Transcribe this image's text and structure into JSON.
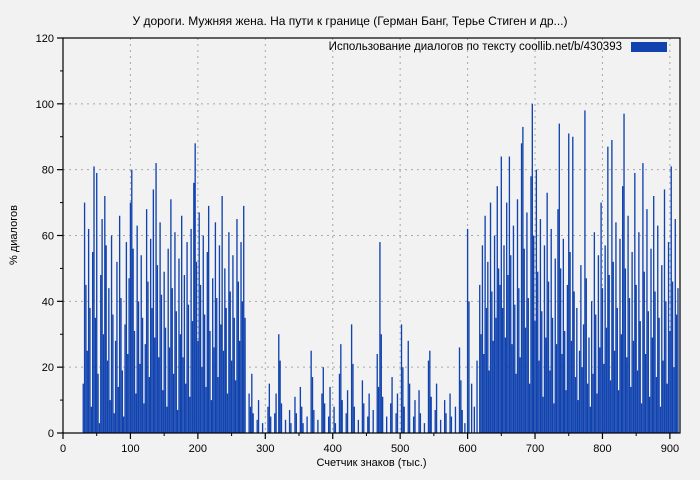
{
  "title": "У дороги. Мужняя жена. На пути к границе (Герман Банг, Терье Стиген и др...)",
  "legend": {
    "label": "Использование диалогов по тексту  coollib.net/b/430393",
    "swatch_color": "#1143af"
  },
  "colors": {
    "background": "#f2f2f2",
    "bar": "#1143af",
    "grid": "#a8a8a8",
    "border": "#000000",
    "text": "#000000"
  },
  "chart_data": {
    "type": "bar",
    "style": "impulses",
    "title": "У дороги. Мужняя жена. На пути к границе (Герман Банг, Терье Стиген и др...)",
    "xlabel": "Счетчик знаков (тыс.)",
    "ylabel": "% диалогов",
    "xlim": [
      0,
      915
    ],
    "ylim": [
      0,
      120
    ],
    "x_ticks": [
      0,
      100,
      200,
      300,
      400,
      500,
      600,
      700,
      800,
      900
    ],
    "x_minor_ticks": [
      50,
      150,
      250,
      350,
      450,
      550,
      650,
      750,
      850
    ],
    "y_ticks": [
      0,
      20,
      40,
      60,
      80,
      100,
      120
    ],
    "y_minor_ticks": [
      10,
      30,
      50,
      70,
      90,
      110
    ],
    "grid": true,
    "legend_position": "top-right",
    "bar_color": "#1143af",
    "points": [
      [
        30,
        15
      ],
      [
        32,
        70
      ],
      [
        34,
        45
      ],
      [
        36,
        25
      ],
      [
        38,
        62
      ],
      [
        40,
        38
      ],
      [
        42,
        8
      ],
      [
        44,
        55
      ],
      [
        46,
        81
      ],
      [
        48,
        35
      ],
      [
        50,
        79
      ],
      [
        52,
        18
      ],
      [
        54,
        3
      ],
      [
        56,
        48
      ],
      [
        58,
        65
      ],
      [
        60,
        30
      ],
      [
        62,
        72
      ],
      [
        64,
        57
      ],
      [
        66,
        22
      ],
      [
        68,
        44
      ],
      [
        70,
        10
      ],
      [
        72,
        60
      ],
      [
        74,
        36
      ],
      [
        76,
        6
      ],
      [
        78,
        28
      ],
      [
        80,
        52
      ],
      [
        82,
        14
      ],
      [
        84,
        66
      ],
      [
        86,
        41
      ],
      [
        88,
        19
      ],
      [
        90,
        5
      ],
      [
        92,
        33
      ],
      [
        94,
        58
      ],
      [
        96,
        24
      ],
      [
        98,
        47
      ],
      [
        100,
        70
      ],
      [
        102,
        80
      ],
      [
        104,
        56
      ],
      [
        106,
        31
      ],
      [
        108,
        12
      ],
      [
        110,
        63
      ],
      [
        112,
        40
      ],
      [
        114,
        21
      ],
      [
        116,
        54
      ],
      [
        118,
        35
      ],
      [
        120,
        9
      ],
      [
        122,
        27
      ],
      [
        124,
        68
      ],
      [
        126,
        46
      ],
      [
        128,
        17
      ],
      [
        130,
        59
      ],
      [
        132,
        38
      ],
      [
        134,
        74
      ],
      [
        136,
        29
      ],
      [
        138,
        82
      ],
      [
        140,
        51
      ],
      [
        142,
        23
      ],
      [
        144,
        64
      ],
      [
        146,
        42
      ],
      [
        148,
        13
      ],
      [
        150,
        49
      ],
      [
        152,
        32
      ],
      [
        154,
        8
      ],
      [
        156,
        56
      ],
      [
        158,
        26
      ],
      [
        160,
        71
      ],
      [
        162,
        44
      ],
      [
        164,
        18
      ],
      [
        166,
        61
      ],
      [
        168,
        37
      ],
      [
        170,
        7
      ],
      [
        172,
        53
      ],
      [
        174,
        30
      ],
      [
        176,
        66
      ],
      [
        178,
        23
      ],
      [
        180,
        48
      ],
      [
        182,
        15
      ],
      [
        184,
        58
      ],
      [
        186,
        39
      ],
      [
        188,
        11
      ],
      [
        190,
        62
      ],
      [
        192,
        34
      ],
      [
        194,
        76
      ],
      [
        196,
        88
      ],
      [
        198,
        52
      ],
      [
        200,
        28
      ],
      [
        202,
        67
      ],
      [
        204,
        45
      ],
      [
        206,
        20
      ],
      [
        208,
        60
      ],
      [
        210,
        36
      ],
      [
        212,
        14
      ],
      [
        214,
        55
      ],
      [
        216,
        69
      ],
      [
        218,
        31
      ],
      [
        220,
        10
      ],
      [
        222,
        47
      ],
      [
        224,
        26
      ],
      [
        226,
        64
      ],
      [
        228,
        41
      ],
      [
        230,
        17
      ],
      [
        232,
        57
      ],
      [
        234,
        33
      ],
      [
        236,
        72
      ],
      [
        238,
        25
      ],
      [
        240,
        50
      ],
      [
        242,
        38
      ],
      [
        244,
        12
      ],
      [
        246,
        61
      ],
      [
        248,
        43
      ],
      [
        250,
        22
      ],
      [
        252,
        54
      ],
      [
        254,
        35
      ],
      [
        256,
        16
      ],
      [
        258,
        65
      ],
      [
        260,
        46
      ],
      [
        262,
        28
      ],
      [
        264,
        58
      ],
      [
        266,
        40
      ],
      [
        268,
        69
      ],
      [
        270,
        35
      ],
      [
        276,
        12
      ],
      [
        278,
        8
      ],
      [
        280,
        18
      ],
      [
        282,
        6
      ],
      [
        288,
        4
      ],
      [
        290,
        10
      ],
      [
        296,
        3
      ],
      [
        304,
        8
      ],
      [
        306,
        15
      ],
      [
        308,
        5
      ],
      [
        314,
        6
      ],
      [
        316,
        12
      ],
      [
        320,
        30
      ],
      [
        322,
        22
      ],
      [
        324,
        9
      ],
      [
        330,
        4
      ],
      [
        336,
        7
      ],
      [
        338,
        3
      ],
      [
        344,
        11
      ],
      [
        346,
        6
      ],
      [
        352,
        14
      ],
      [
        354,
        8
      ],
      [
        356,
        3
      ],
      [
        362,
        5
      ],
      [
        368,
        25
      ],
      [
        370,
        17
      ],
      [
        372,
        7
      ],
      [
        378,
        4
      ],
      [
        384,
        12
      ],
      [
        386,
        20
      ],
      [
        388,
        9
      ],
      [
        394,
        5
      ],
      [
        396,
        14
      ],
      [
        402,
        8
      ],
      [
        404,
        3
      ],
      [
        410,
        18
      ],
      [
        412,
        27
      ],
      [
        414,
        10
      ],
      [
        420,
        6
      ],
      [
        422,
        13
      ],
      [
        428,
        33
      ],
      [
        430,
        21
      ],
      [
        432,
        8
      ],
      [
        438,
        4
      ],
      [
        444,
        16
      ],
      [
        446,
        9
      ],
      [
        452,
        5
      ],
      [
        454,
        12
      ],
      [
        460,
        7
      ],
      [
        466,
        24
      ],
      [
        468,
        14
      ],
      [
        470,
        58
      ],
      [
        472,
        30
      ],
      [
        474,
        11
      ],
      [
        480,
        5
      ],
      [
        486,
        9
      ],
      [
        488,
        17
      ],
      [
        494,
        6
      ],
      [
        496,
        12
      ],
      [
        502,
        33
      ],
      [
        504,
        20
      ],
      [
        506,
        8
      ],
      [
        512,
        28
      ],
      [
        514,
        15
      ],
      [
        520,
        5
      ],
      [
        522,
        10
      ],
      [
        528,
        13
      ],
      [
        530,
        6
      ],
      [
        536,
        3
      ],
      [
        542,
        22
      ],
      [
        544,
        25
      ],
      [
        546,
        11
      ],
      [
        552,
        7
      ],
      [
        554,
        15
      ],
      [
        560,
        4
      ],
      [
        566,
        10
      ],
      [
        568,
        6
      ],
      [
        574,
        12
      ],
      [
        576,
        5
      ],
      [
        582,
        8
      ],
      [
        588,
        26
      ],
      [
        590,
        16
      ],
      [
        592,
        7
      ],
      [
        596,
        3
      ],
      [
        600,
        62
      ],
      [
        602,
        40
      ],
      [
        606,
        15
      ],
      [
        610,
        8
      ],
      [
        614,
        22
      ],
      [
        618,
        45
      ],
      [
        620,
        30
      ],
      [
        622,
        57
      ],
      [
        624,
        24
      ],
      [
        626,
        66
      ],
      [
        628,
        38
      ],
      [
        630,
        52
      ],
      [
        632,
        19
      ],
      [
        634,
        70
      ],
      [
        636,
        43
      ],
      [
        638,
        28
      ],
      [
        640,
        60
      ],
      [
        642,
        35
      ],
      [
        644,
        75
      ],
      [
        646,
        50
      ],
      [
        648,
        45
      ],
      [
        650,
        84
      ],
      [
        652,
        38
      ],
      [
        654,
        57
      ],
      [
        656,
        29
      ],
      [
        658,
        70
      ],
      [
        660,
        48
      ],
      [
        662,
        84
      ],
      [
        664,
        54
      ],
      [
        666,
        27
      ],
      [
        668,
        63
      ],
      [
        670,
        39
      ],
      [
        672,
        18
      ],
      [
        674,
        71
      ],
      [
        676,
        44
      ],
      [
        678,
        23
      ],
      [
        680,
        88
      ],
      [
        682,
        93
      ],
      [
        684,
        56
      ],
      [
        686,
        32
      ],
      [
        688,
        67
      ],
      [
        690,
        41
      ],
      [
        692,
        15
      ],
      [
        694,
        78
      ],
      [
        696,
        100
      ],
      [
        698,
        60
      ],
      [
        700,
        34
      ],
      [
        702,
        80
      ],
      [
        704,
        49
      ],
      [
        706,
        22
      ],
      [
        708,
        65
      ],
      [
        710,
        37
      ],
      [
        712,
        11
      ],
      [
        714,
        57
      ],
      [
        716,
        29
      ],
      [
        718,
        73
      ],
      [
        720,
        46
      ],
      [
        722,
        19
      ],
      [
        724,
        62
      ],
      [
        726,
        35
      ],
      [
        728,
        9
      ],
      [
        730,
        53
      ],
      [
        732,
        27
      ],
      [
        734,
        68
      ],
      [
        736,
        94
      ],
      [
        738,
        50
      ],
      [
        740,
        24
      ],
      [
        742,
        59
      ],
      [
        744,
        31
      ],
      [
        746,
        13
      ],
      [
        748,
        45
      ],
      [
        750,
        91
      ],
      [
        752,
        55
      ],
      [
        754,
        28
      ],
      [
        756,
        90
      ],
      [
        758,
        43
      ],
      [
        760,
        17
      ],
      [
        762,
        38
      ],
      [
        764,
        10
      ],
      [
        766,
        25
      ],
      [
        768,
        51
      ],
      [
        770,
        20
      ],
      [
        772,
        33
      ],
      [
        774,
        98
      ],
      [
        776,
        47
      ],
      [
        778,
        15
      ],
      [
        780,
        29
      ],
      [
        782,
        8
      ],
      [
        784,
        40
      ],
      [
        786,
        18
      ],
      [
        788,
        61
      ],
      [
        790,
        36
      ],
      [
        792,
        12
      ],
      [
        794,
        54
      ],
      [
        796,
        26
      ],
      [
        798,
        70
      ],
      [
        800,
        44
      ],
      [
        802,
        21
      ],
      [
        804,
        57
      ],
      [
        806,
        32
      ],
      [
        808,
        87
      ],
      [
        810,
        48
      ],
      [
        812,
        16
      ],
      [
        814,
        89
      ],
      [
        816,
        52
      ],
      [
        818,
        25
      ],
      [
        820,
        64
      ],
      [
        822,
        38
      ],
      [
        824,
        13
      ],
      [
        826,
        59
      ],
      [
        828,
        30
      ],
      [
        830,
        75
      ],
      [
        832,
        97
      ],
      [
        834,
        50
      ],
      [
        836,
        23
      ],
      [
        838,
        66
      ],
      [
        840,
        41
      ],
      [
        842,
        14
      ],
      [
        844,
        55
      ],
      [
        846,
        28
      ],
      [
        848,
        79
      ],
      [
        850,
        45
      ],
      [
        852,
        19
      ],
      [
        854,
        61
      ],
      [
        856,
        34
      ],
      [
        858,
        9
      ],
      [
        860,
        82
      ],
      [
        862,
        49
      ],
      [
        864,
        24
      ],
      [
        866,
        68
      ],
      [
        868,
        37
      ],
      [
        870,
        11
      ],
      [
        872,
        56
      ],
      [
        874,
        29
      ],
      [
        876,
        72
      ],
      [
        878,
        43
      ],
      [
        880,
        17
      ],
      [
        882,
        63
      ],
      [
        884,
        35
      ],
      [
        886,
        8
      ],
      [
        888,
        51
      ],
      [
        890,
        22
      ],
      [
        892,
        74
      ],
      [
        894,
        40
      ],
      [
        896,
        15
      ],
      [
        898,
        58
      ],
      [
        900,
        31
      ],
      [
        902,
        81
      ],
      [
        904,
        46
      ],
      [
        906,
        20
      ],
      [
        908,
        65
      ],
      [
        910,
        36
      ],
      [
        912,
        44
      ]
    ]
  }
}
